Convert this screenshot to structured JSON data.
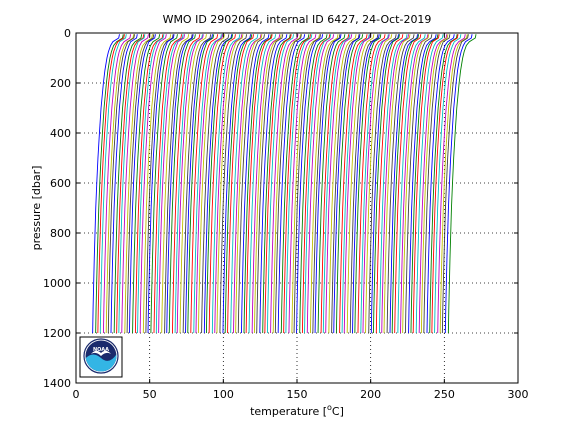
{
  "chart_data": {
    "type": "line",
    "title": "WMO ID 2902064, internal ID 6427, 24-Oct-2019",
    "xlabel_prefix": "temperature [",
    "xlabel_unit_sup": "o",
    "xlabel_suffix": "C]",
    "ylabel": "pressure [dbar]",
    "xlim": [
      0,
      300
    ],
    "ylim": [
      1400,
      0
    ],
    "y_reversed": true,
    "grid": true,
    "grid_style": "dotted",
    "xticks": [
      0,
      50,
      100,
      150,
      200,
      250,
      300
    ],
    "yticks": [
      0,
      200,
      400,
      600,
      800,
      1000,
      1200,
      1400
    ],
    "profiles": {
      "count": 135,
      "first_offset": 9,
      "offset_step": 1.8,
      "pressure": [
        5,
        20,
        35,
        50,
        75,
        100,
        150,
        200,
        300,
        400,
        500,
        600,
        700,
        800,
        900,
        1000,
        1100,
        1200
      ],
      "temperature_shape": [
        20.5,
        20.0,
        16.0,
        14.5,
        13.0,
        12.0,
        10.6,
        9.6,
        8.0,
        6.9,
        5.9,
        5.1,
        4.4,
        3.9,
        3.4,
        3.0,
        2.6,
        2.3
      ],
      "colors": [
        "#0000ff",
        "#008000",
        "#ff0000",
        "#00bfbf",
        "#bf00bf",
        "#bfbf00",
        "#404040"
      ]
    }
  },
  "logo": {
    "text": "NOAA",
    "colors": {
      "navy": "#1a2a6c",
      "sky": "#33b5e5",
      "white": "#ffffff"
    }
  }
}
